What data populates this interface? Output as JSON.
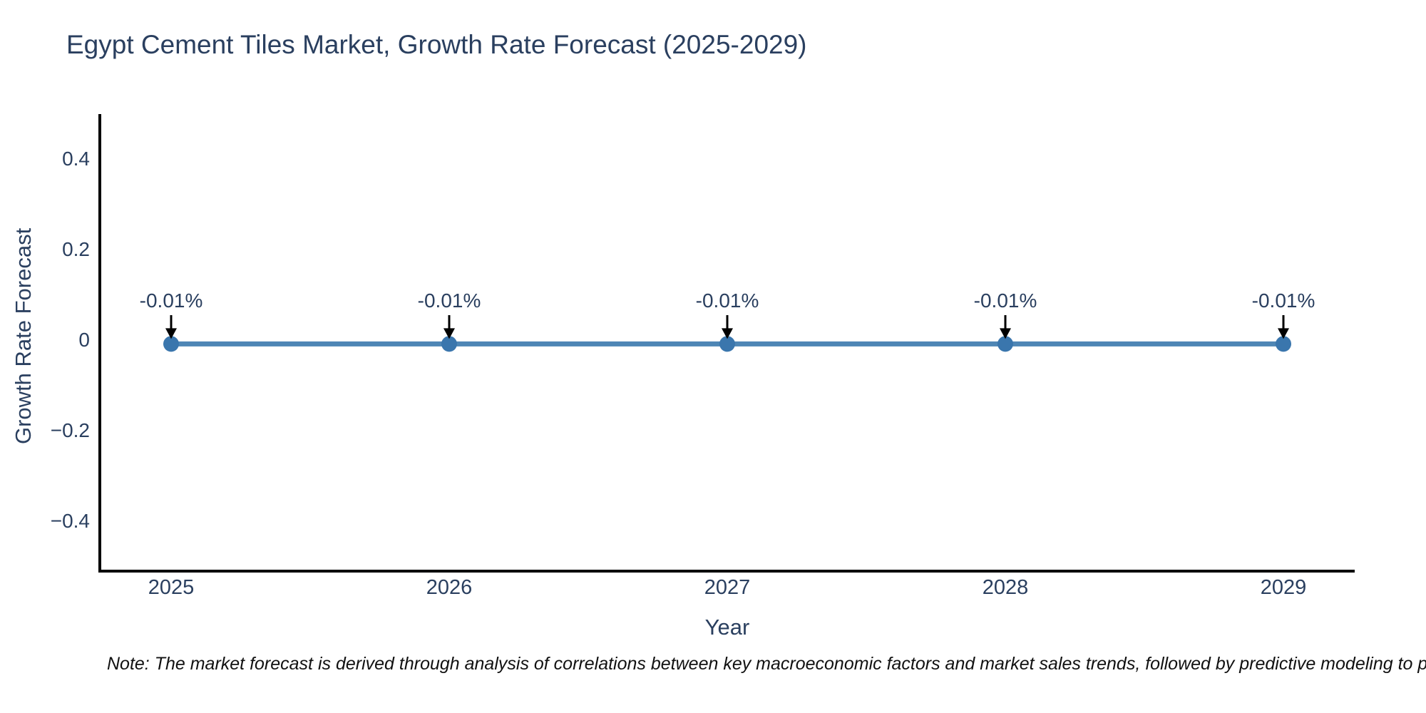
{
  "title": "Egypt Cement Tiles Market, Growth Rate Forecast (2025-2029)",
  "note": "Note: The market forecast is derived through analysis of correlations between key macroeconomic factors and market sales trends, followed by predictive modeling to project future sales",
  "chart_data": {
    "type": "line",
    "x": [
      2025,
      2026,
      2027,
      2028,
      2029
    ],
    "xtick_labels": [
      "2025",
      "2026",
      "2027",
      "2028",
      "2029"
    ],
    "series": [
      {
        "name": "Growth Rate Forecast",
        "values": [
          -0.01,
          -0.01,
          -0.01,
          -0.01,
          -0.01
        ]
      }
    ],
    "point_labels": [
      "-0.01%",
      "-0.01%",
      "-0.01%",
      "-0.01%",
      "-0.01%"
    ],
    "title": "Egypt Cement Tiles Market, Growth Rate Forecast (2025-2029)",
    "xlabel": "Year",
    "ylabel": "Growth Rate Forecast",
    "ylim": [
      -0.51,
      0.5
    ],
    "yticks": [
      0.4,
      0.2,
      0,
      -0.2,
      -0.4
    ],
    "ytick_labels": [
      "0.4",
      "0.2",
      "0",
      "−0.2",
      "−0.4"
    ],
    "grid": false,
    "legend": "none"
  },
  "colors": {
    "line": "#4e86b5",
    "marker": "#3a76ad",
    "axis_line": "#000000",
    "axis_text": "#2a3f5f",
    "annotation_text": "#2a3f5f",
    "annotation_arrow": "#000000",
    "note_text": "#111111"
  }
}
